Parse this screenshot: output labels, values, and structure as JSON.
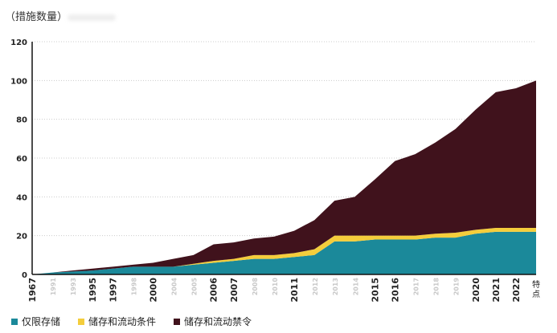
{
  "chart_data": {
    "type": "area",
    "stacked": true,
    "ylabel": "（措施数量）",
    "ylim": [
      0,
      120
    ],
    "yticks": [
      0,
      20,
      40,
      60,
      80,
      100,
      120
    ],
    "grid": true,
    "legend_position": "bottom-left",
    "categories": [
      "1967",
      "1991",
      "1993",
      "1995",
      "1997",
      "1998",
      "2000",
      "2004",
      "2005",
      "2006",
      "2007",
      "2008",
      "2010",
      "2011",
      "2012",
      "2013",
      "2014",
      "2015",
      "2016",
      "2017",
      "2018",
      "2019",
      "2020",
      "2021",
      "2022",
      "特点"
    ],
    "faded_categories": [
      1,
      2,
      5,
      7,
      8,
      11,
      12,
      14,
      15,
      16,
      19,
      20,
      21
    ],
    "series": [
      {
        "name": "仅限存储",
        "color": "#1b899a",
        "values": [
          0,
          1,
          1.5,
          2,
          3,
          4,
          4,
          4,
          5,
          6,
          7,
          8,
          8,
          9,
          10,
          17,
          17,
          18,
          18,
          18,
          19,
          19,
          21,
          22,
          22,
          22
        ]
      },
      {
        "name": "储存和流动条件",
        "color": "#f4cd3c",
        "values": [
          0,
          0,
          0,
          0,
          0,
          0,
          0,
          0,
          0.5,
          1,
          1,
          2,
          2,
          2,
          3,
          3,
          3,
          2,
          2,
          2,
          2,
          2.5,
          2,
          2,
          2,
          2
        ]
      },
      {
        "name": "储存和流动禁令",
        "color": "#40121c",
        "values": [
          0,
          0,
          0.5,
          1,
          1,
          1,
          2,
          4,
          4.5,
          8.5,
          8.5,
          8.5,
          9.5,
          11.5,
          15,
          18,
          20,
          29,
          38.5,
          42,
          47,
          53.5,
          62,
          70,
          72,
          76
        ]
      }
    ]
  }
}
